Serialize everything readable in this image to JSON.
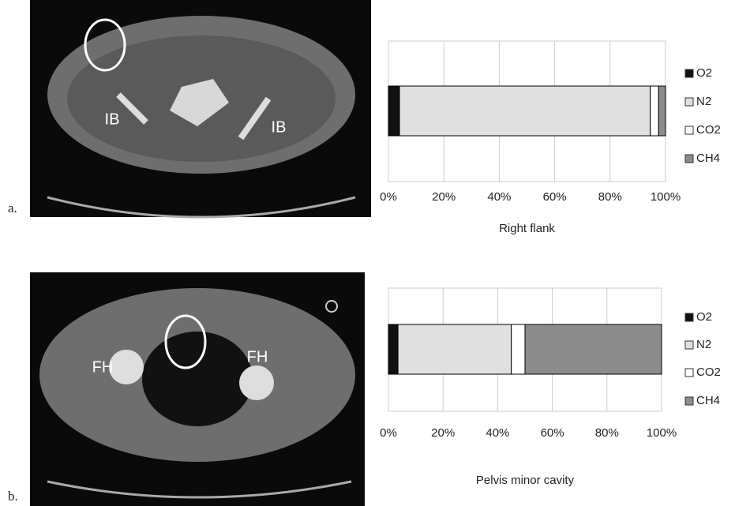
{
  "chart_data": [
    {
      "type": "bar",
      "orientation": "horizontal",
      "stacked": true,
      "x_label": "Right flank",
      "categories": [
        null
      ],
      "series": [
        {
          "name": "O2",
          "color": "#111111",
          "values": [
            4
          ]
        },
        {
          "name": "N2",
          "color": "#e0e0e0",
          "values": [
            90.5
          ]
        },
        {
          "name": "CO2",
          "color": "#ffffff",
          "values": [
            3
          ]
        },
        {
          "name": "CH4",
          "color": "#8c8c8c",
          "values": [
            2.5
          ]
        }
      ],
      "xlim": [
        0,
        100
      ],
      "xticks": [
        {
          "value": 0,
          "label": "0%"
        },
        {
          "value": 20,
          "label": "20%"
        },
        {
          "value": 40,
          "label": "40%"
        },
        {
          "value": 60,
          "label": "60%"
        },
        {
          "value": 80,
          "label": "80%"
        },
        {
          "value": 100,
          "label": "100%"
        }
      ],
      "grid": true,
      "legend": "right"
    },
    {
      "type": "bar",
      "orientation": "horizontal",
      "stacked": true,
      "x_label": "Pelvis minor cavity",
      "categories": [
        null
      ],
      "series": [
        {
          "name": "O2",
          "color": "#111111",
          "values": [
            3.5
          ]
        },
        {
          "name": "N2",
          "color": "#e0e0e0",
          "values": [
            41.5
          ]
        },
        {
          "name": "CO2",
          "color": "#ffffff",
          "values": [
            5
          ]
        },
        {
          "name": "CH4",
          "color": "#8c8c8c",
          "values": [
            50
          ]
        }
      ],
      "xlim": [
        0,
        100
      ],
      "xticks": [
        {
          "value": 0,
          "label": "0%"
        },
        {
          "value": 20,
          "label": "20%"
        },
        {
          "value": 40,
          "label": "40%"
        },
        {
          "value": 60,
          "label": "60%"
        },
        {
          "value": 80,
          "label": "80%"
        },
        {
          "value": 100,
          "label": "100%"
        }
      ],
      "grid": true,
      "legend": "right"
    }
  ],
  "images": [
    {
      "panel_label": "a.",
      "labels": [
        "IB",
        "IB"
      ]
    },
    {
      "panel_label": "b.",
      "labels": [
        "FH",
        "FH"
      ]
    }
  ]
}
